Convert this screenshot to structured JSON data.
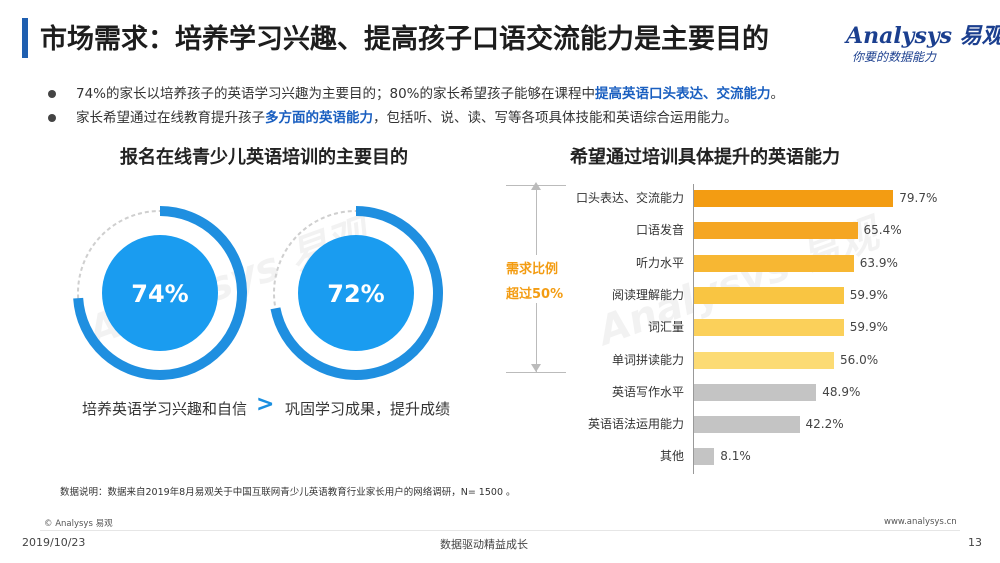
{
  "header": {
    "title": "市场需求：培养学习兴趣、提高孩子口语交流能力是主要目的",
    "logo_text": "Analysys 易观",
    "logo_slogan": "你要的数据能力"
  },
  "bullets": [
    {
      "pre": "74%的家长以培养孩子的英语学习兴趣为主要目的；80%的家长希望孩子能够在课程中",
      "hl": "提高英语口头表达、交流能力",
      "post": "。"
    },
    {
      "pre": "家长希望通过在线教育提升孩子",
      "hl": "多方面的英语能力",
      "post": "，包括听、说、读、写等各项具体技能和英语综合运用能力。"
    }
  ],
  "left_panel": {
    "title": "报名在线青少儿英语培训的主要目的",
    "donuts": [
      {
        "value": 74,
        "label": "74%",
        "caption": "培养英语学习兴趣和自信"
      },
      {
        "value": 72,
        "label": "72%",
        "caption": "巩固学习成果，提升成绩"
      }
    ],
    "comparator": ">"
  },
  "right_panel": {
    "title": "希望通过培训具体提升的英语能力",
    "annotation_line1": "需求比例",
    "annotation_line2": "超过50%"
  },
  "chart_data": [
    {
      "type": "pie",
      "title": "报名在线青少儿英语培训的主要目的",
      "series": [
        {
          "name": "培养英语学习兴趣和自信",
          "values": [
            74,
            26
          ]
        },
        {
          "name": "巩固学习成果，提升成绩",
          "values": [
            72,
            28
          ]
        }
      ],
      "unit": "%"
    },
    {
      "type": "bar",
      "orientation": "horizontal",
      "title": "希望通过培训具体提升的英语能力",
      "categories": [
        "口头表达、交流能力",
        "口语发音",
        "听力水平",
        "阅读理解能力",
        "词汇量",
        "单词拼读能力",
        "英语写作水平",
        "英语语法运用能力",
        "其他"
      ],
      "values": [
        79.7,
        65.4,
        63.9,
        59.9,
        59.9,
        56.0,
        48.9,
        42.2,
        8.1
      ],
      "labels": [
        "79.7%",
        "65.4%",
        "63.9%",
        "59.9%",
        "59.9%",
        "56.0%",
        "48.9%",
        "42.2%",
        "8.1%"
      ],
      "colors": [
        "#f39c12",
        "#f5a623",
        "#f7b733",
        "#f9c542",
        "#fbd05a",
        "#fcdb74",
        "#c4c4c4",
        "#c4c4c4",
        "#c4c4c4"
      ],
      "xlim": [
        0,
        100
      ]
    }
  ],
  "footer": {
    "note": "数据说明：数据来自2019年8月易观关于中国互联网青少儿英语教育行业家长用户的网络调研，N= 1500 。",
    "copyright": "© Analysys 易观",
    "website": "www.analysys.cn",
    "date": "2019/10/23",
    "slogan": "数据驱动精益成长",
    "page": "13"
  }
}
